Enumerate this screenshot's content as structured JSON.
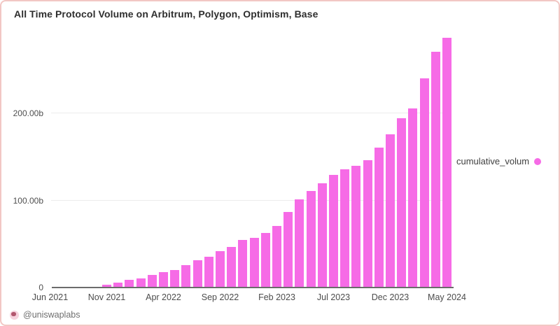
{
  "header": {
    "title": "All Time Protocol Volume on Arbitrum, Polygon, Optimism, Base"
  },
  "legend": {
    "label": "cumulative_volum",
    "dot_color": "#f66be6"
  },
  "footer": {
    "handle": "@uniswaplabs",
    "icon": "uniswap-avatar-icon"
  },
  "colors": {
    "bar": "#f66be6",
    "card_border": "#f2c7c4",
    "axis_line": "#6b6b6b",
    "gridline": "#ececec"
  },
  "chart_data": {
    "type": "bar",
    "title": "All Time Protocol Volume on Arbitrum, Polygon, Optimism, Base",
    "unit": "billions (b)",
    "series_name": "cumulative_volum",
    "x": [
      "Jun 2021",
      "Jul 2021",
      "Aug 2021",
      "Sep 2021",
      "Oct 2021",
      "Nov 2021",
      "Dec 2021",
      "Jan 2022",
      "Feb 2022",
      "Mar 2022",
      "Apr 2022",
      "May 2022",
      "Jun 2022",
      "Jul 2022",
      "Aug 2022",
      "Sep 2022",
      "Oct 2022",
      "Nov 2022",
      "Dec 2022",
      "Jan 2023",
      "Feb 2023",
      "Mar 2023",
      "Apr 2023",
      "May 2023",
      "Jun 2023",
      "Jul 2023",
      "Aug 2023",
      "Sep 2023",
      "Oct 2023",
      "Nov 2023",
      "Dec 2023",
      "Jan 2024",
      "Feb 2024",
      "Mar 2024",
      "Apr 2024",
      "May 2024"
    ],
    "values": [
      0.05,
      0.15,
      0.3,
      0.6,
      1,
      3.2,
      5.6,
      8.8,
      10.5,
      14.5,
      17.7,
      20,
      25.5,
      31,
      35,
      42,
      46.5,
      55,
      57,
      63,
      71,
      87,
      101,
      111,
      120,
      129,
      136,
      140,
      146,
      161,
      176,
      194,
      206,
      240,
      271,
      287
    ],
    "x_tick_labels": [
      "Jun 2021",
      "Nov 2021",
      "Apr 2022",
      "Sep 2022",
      "Feb 2023",
      "Jul 2023",
      "Dec 2023",
      "May 2024"
    ],
    "y_ticks": [
      {
        "value": 0,
        "label": "0"
      },
      {
        "value": 100,
        "label": "100.00b"
      },
      {
        "value": 200,
        "label": "200.00b"
      }
    ],
    "ylim": [
      0,
      290
    ],
    "grid": "horizontal-only",
    "legend_entries": [
      "cumulative_volum"
    ],
    "legend_position": "right"
  }
}
